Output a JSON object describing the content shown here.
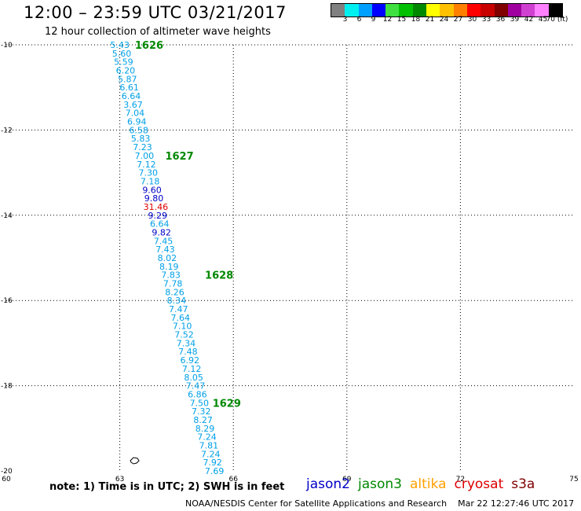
{
  "title": "12:00 – 23:59 UTC 03/21/2017",
  "subtitle": "12 hour collection of altimeter wave heights",
  "colorbar": {
    "colors": [
      "#808080",
      "#00f0f0",
      "#00a0ff",
      "#0000ff",
      "#40e040",
      "#00c000",
      "#008800",
      "#ffff00",
      "#ffc000",
      "#ff8000",
      "#ff0000",
      "#c80000",
      "#800000",
      "#a000a0",
      "#d040d0",
      "#ff80ff",
      "#000000"
    ],
    "labels": [
      "3",
      "6",
      "9",
      "12",
      "15",
      "18",
      "21",
      "24",
      "27",
      "30",
      "33",
      "36",
      "39",
      "42",
      "45",
      "70 (ft)"
    ]
  },
  "map": {
    "lon_ticks": [
      "60",
      "63",
      "66",
      "69",
      "72",
      "75"
    ],
    "lat_ticks": [
      "-10",
      "-12",
      "-14",
      "-16",
      "-18",
      "-20"
    ],
    "colors": {
      "default": "#00a0e6",
      "jason2": "#0000c8",
      "cryosat": "#dd0000",
      "time": "#008800"
    },
    "readings": [
      {
        "lat": -10.0,
        "lon": 63.0,
        "v": "5.43"
      },
      {
        "lat": -10.2,
        "lon": 63.05,
        "v": "5.60"
      },
      {
        "lat": -10.4,
        "lon": 63.1,
        "v": "5.59"
      },
      {
        "lat": -10.6,
        "lon": 63.15,
        "v": "6.20"
      },
      {
        "lat": -10.8,
        "lon": 63.2,
        "v": "5.87"
      },
      {
        "lat": -11.0,
        "lon": 63.25,
        "v": "6.61"
      },
      {
        "lat": -11.2,
        "lon": 63.3,
        "v": "6.64"
      },
      {
        "lat": -11.4,
        "lon": 63.35,
        "v": "3.67"
      },
      {
        "lat": -11.6,
        "lon": 63.4,
        "v": "7.04"
      },
      {
        "lat": -11.8,
        "lon": 63.45,
        "v": "6.94"
      },
      {
        "lat": -12.0,
        "lon": 63.5,
        "v": "6.58"
      },
      {
        "lat": -12.2,
        "lon": 63.55,
        "v": "5.83"
      },
      {
        "lat": -12.4,
        "lon": 63.6,
        "v": "7.23"
      },
      {
        "lat": -12.6,
        "lon": 63.65,
        "v": "7.00"
      },
      {
        "lat": -12.8,
        "lon": 63.7,
        "v": "7.12"
      },
      {
        "lat": -13.0,
        "lon": 63.75,
        "v": "7.30"
      },
      {
        "lat": -13.2,
        "lon": 63.8,
        "v": "7.18"
      },
      {
        "lat": -13.4,
        "lon": 63.85,
        "v": "9.60",
        "sat": "jason2"
      },
      {
        "lat": -13.6,
        "lon": 63.9,
        "v": "9.80",
        "sat": "jason2"
      },
      {
        "lat": -13.8,
        "lon": 63.95,
        "v": "31.46",
        "sat": "cryosat"
      },
      {
        "lat": -14.0,
        "lon": 64.0,
        "v": "9.29",
        "sat": "jason2"
      },
      {
        "lat": -14.2,
        "lon": 64.05,
        "v": "6.64"
      },
      {
        "lat": -14.4,
        "lon": 64.1,
        "v": "9.82",
        "sat": "jason2"
      },
      {
        "lat": -14.6,
        "lon": 64.15,
        "v": "7.45"
      },
      {
        "lat": -14.8,
        "lon": 64.2,
        "v": "7.43"
      },
      {
        "lat": -15.0,
        "lon": 64.25,
        "v": "8.02"
      },
      {
        "lat": -15.2,
        "lon": 64.3,
        "v": "8.19"
      },
      {
        "lat": -15.4,
        "lon": 64.35,
        "v": "7.83"
      },
      {
        "lat": -15.6,
        "lon": 64.4,
        "v": "7.78"
      },
      {
        "lat": -15.8,
        "lon": 64.45,
        "v": "8.26"
      },
      {
        "lat": -16.0,
        "lon": 64.5,
        "v": "8.34"
      },
      {
        "lat": -16.2,
        "lon": 64.55,
        "v": "7.47"
      },
      {
        "lat": -16.4,
        "lon": 64.6,
        "v": "7.64"
      },
      {
        "lat": -16.6,
        "lon": 64.65,
        "v": "7.10"
      },
      {
        "lat": -16.8,
        "lon": 64.7,
        "v": "7.52"
      },
      {
        "lat": -17.0,
        "lon": 64.75,
        "v": "7.34"
      },
      {
        "lat": -17.2,
        "lon": 64.8,
        "v": "7.48"
      },
      {
        "lat": -17.4,
        "lon": 64.85,
        "v": "6.92"
      },
      {
        "lat": -17.6,
        "lon": 64.9,
        "v": "7.12"
      },
      {
        "lat": -17.8,
        "lon": 64.95,
        "v": "8.05"
      },
      {
        "lat": -18.0,
        "lon": 65.0,
        "v": "7.47"
      },
      {
        "lat": -18.2,
        "lon": 65.05,
        "v": "6.86"
      },
      {
        "lat": -18.4,
        "lon": 65.1,
        "v": "7.50"
      },
      {
        "lat": -18.6,
        "lon": 65.15,
        "v": "7.32"
      },
      {
        "lat": -18.8,
        "lon": 65.2,
        "v": "8.27"
      },
      {
        "lat": -19.0,
        "lon": 65.25,
        "v": "8.29"
      },
      {
        "lat": -19.2,
        "lon": 65.3,
        "v": "7.24"
      },
      {
        "lat": -19.4,
        "lon": 65.35,
        "v": "7.81"
      },
      {
        "lat": -19.6,
        "lon": 65.4,
        "v": "7.24"
      },
      {
        "lat": -19.8,
        "lon": 65.45,
        "v": "7.92"
      },
      {
        "lat": -20.0,
        "lon": 65.5,
        "v": "7.69"
      }
    ],
    "time_labels": [
      {
        "lat": -10.0,
        "lon": 63.4,
        "v": "1626"
      },
      {
        "lat": -12.6,
        "lon": 64.2,
        "v": "1627"
      },
      {
        "lat": -15.4,
        "lon": 65.25,
        "v": "1628"
      },
      {
        "lat": -18.4,
        "lon": 65.45,
        "v": "1629"
      }
    ]
  },
  "note": "note: 1) Time is in UTC; 2) SWH is in feet",
  "satellites": [
    {
      "name": "jason2",
      "color": "#0000c8"
    },
    {
      "name": "jason3",
      "color": "#008800"
    },
    {
      "name": "altika",
      "color": "#ffa000"
    },
    {
      "name": "cryosat",
      "color": "#dd0000"
    },
    {
      "name": "s3a",
      "color": "#800000"
    }
  ],
  "credit": "NOAA/NESDIS Center for Satellite Applications and Research",
  "timestamp": "Mar 22 12:27:46 UTC 2017"
}
